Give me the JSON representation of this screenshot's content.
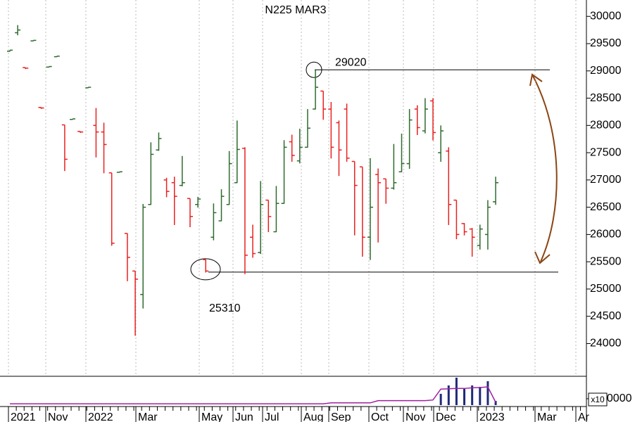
{
  "chart_data": {
    "type": "ohlc",
    "title": "N225 MAR3",
    "up_color": "#2e6b2e",
    "down_color": "#e8211f",
    "ylim": [
      23400,
      30300
    ],
    "yticks": [
      24000,
      24500,
      25000,
      25500,
      26000,
      26500,
      27000,
      27500,
      28000,
      28500,
      29000,
      29500,
      30000
    ],
    "levels": [
      29020,
      25310
    ],
    "x_labels": [
      "2021",
      "Nov",
      "2022",
      "Mar",
      "May",
      "Jun",
      "Jul",
      "Aug",
      "Sep",
      "Oct",
      "Nov",
      "Dec",
      "2023",
      "Mar",
      "Ar"
    ],
    "ohlc": [
      [
        29360,
        29380,
        29360,
        29380
      ],
      [
        29700,
        29840,
        29660,
        29750
      ],
      [
        29060,
        29060,
        29040,
        29050
      ],
      [
        29550,
        29560,
        29550,
        29560
      ],
      [
        28330,
        28330,
        28310,
        28320
      ],
      [
        29070,
        29080,
        29070,
        29080
      ],
      [
        29260,
        29270,
        29260,
        29270
      ],
      [
        28010,
        28010,
        27170,
        27380
      ],
      [
        28110,
        28120,
        28110,
        28120
      ],
      [
        27890,
        27890,
        27870,
        27880
      ],
      [
        28690,
        28700,
        28690,
        28700
      ],
      [
        28000,
        28320,
        27420,
        27880
      ],
      [
        27880,
        28050,
        27130,
        27650
      ],
      [
        27130,
        27130,
        25800,
        25840
      ],
      [
        27140,
        27150,
        27140,
        27150
      ],
      [
        26020,
        26020,
        25150,
        25580
      ],
      [
        25330,
        25330,
        24150,
        25180
      ],
      [
        24900,
        26560,
        24650,
        26500
      ],
      [
        26550,
        27690,
        26550,
        27470
      ],
      [
        27550,
        27870,
        27540,
        27760
      ],
      [
        27000,
        27040,
        26690,
        26790
      ],
      [
        26950,
        27060,
        26180,
        26700
      ],
      [
        26900,
        27440,
        26890,
        26950
      ],
      [
        26660,
        26660,
        26140,
        26330
      ],
      [
        26550,
        26690,
        26500,
        26650
      ],
      [
        25540,
        25540,
        25310,
        25330
      ],
      [
        25950,
        26570,
        25900,
        26400
      ],
      [
        26250,
        26830,
        26250,
        26700
      ],
      [
        26550,
        27530,
        26550,
        27300
      ],
      [
        26950,
        28090,
        26950,
        27560
      ],
      [
        27580,
        27600,
        25280,
        25620
      ],
      [
        25950,
        26180,
        25580,
        25650
      ],
      [
        25670,
        26980,
        25650,
        26550
      ],
      [
        26630,
        26630,
        26050,
        26330
      ],
      [
        26050,
        26890,
        26050,
        26570
      ],
      [
        26570,
        27730,
        26570,
        27600
      ],
      [
        27700,
        27830,
        27340,
        27450
      ],
      [
        27350,
        27940,
        27310,
        27600
      ],
      [
        27600,
        28300,
        27600,
        27950
      ],
      [
        28300,
        29020,
        28300,
        28700
      ],
      [
        28630,
        28630,
        28110,
        28300
      ],
      [
        28300,
        28430,
        27400,
        27600
      ],
      [
        28050,
        28090,
        27080,
        27550
      ],
      [
        28300,
        28400,
        27340,
        27400
      ],
      [
        27340,
        27340,
        25990,
        26900
      ],
      [
        27240,
        27240,
        25600,
        25950
      ],
      [
        25950,
        27400,
        25540,
        26500
      ],
      [
        27100,
        27210,
        25860,
        26950
      ],
      [
        27020,
        27020,
        26570,
        26850
      ],
      [
        26850,
        27660,
        26830,
        26950
      ],
      [
        27150,
        27850,
        27150,
        27300
      ],
      [
        27300,
        28300,
        27210,
        28100
      ],
      [
        28300,
        28370,
        27830,
        27960
      ],
      [
        27900,
        28500,
        27860,
        28300
      ],
      [
        28450,
        28500,
        27730,
        27870
      ],
      [
        27500,
        28000,
        27340,
        27900
      ],
      [
        27530,
        27600,
        26180,
        26550
      ],
      [
        26630,
        26630,
        25920,
        26000
      ],
      [
        26200,
        26210,
        25990,
        26050
      ],
      [
        26100,
        26120,
        25600,
        25950
      ],
      [
        25800,
        26180,
        25730,
        26100
      ],
      [
        26000,
        26630,
        25730,
        26500
      ],
      [
        26600,
        27060,
        26550,
        26950
      ]
    ],
    "volume": {
      "unit": "x10",
      "color": "#1f2a7a",
      "ylim": [
        0,
        45000
      ],
      "yticks": [
        10000
      ],
      "values": [
        null,
        null,
        null,
        null,
        null,
        null,
        null,
        null,
        null,
        null,
        null,
        null,
        null,
        null,
        null,
        null,
        null,
        null,
        null,
        null,
        null,
        null,
        null,
        null,
        null,
        null,
        null,
        null,
        null,
        null,
        null,
        null,
        null,
        null,
        null,
        null,
        null,
        null,
        null,
        null,
        null,
        null,
        null,
        null,
        null,
        null,
        null,
        null,
        null,
        null,
        null,
        null,
        null,
        null,
        null,
        17600,
        30700,
        42800,
        26300,
        30700,
        28500,
        37300,
        6600
      ]
    },
    "open_interest": {
      "color": "#a020a0",
      "values": [
        2000,
        2000,
        2000,
        2000,
        2000,
        2000,
        2000,
        2000,
        2000,
        2000,
        2000,
        2000,
        2000,
        2000,
        2000,
        2000,
        2000,
        2000,
        2000,
        2000,
        2000,
        2000,
        2000,
        2000,
        2000,
        2000,
        2000,
        2000,
        2000,
        2000,
        2000,
        2000,
        2000,
        2000,
        2000,
        2000,
        2000,
        2000,
        2000,
        2000,
        2000,
        3500,
        3500,
        3500,
        3500,
        3500,
        3500,
        7000,
        7000,
        7000,
        7000,
        7000,
        7000,
        7000,
        8000,
        25000,
        25500,
        26000,
        26000,
        27000,
        27500,
        28500,
        4500
      ]
    }
  }
}
